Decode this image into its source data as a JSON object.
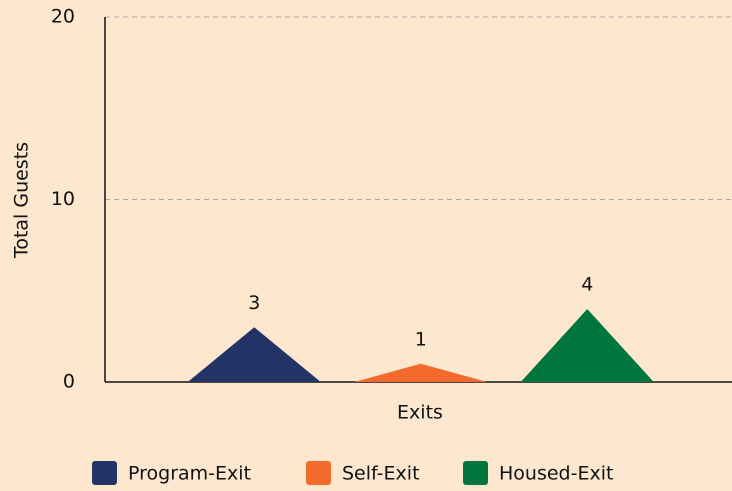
{
  "chart_data": {
    "type": "bar",
    "xlabel": "Exits",
    "ylabel": "Total Guests",
    "series": [
      {
        "name": "Program-Exit",
        "color": "#243366",
        "values": [
          3
        ]
      },
      {
        "name": "Self-Exit",
        "color": "#f26a2c",
        "values": [
          1
        ]
      },
      {
        "name": "Housed-Exit",
        "color": "#00763e",
        "values": [
          4
        ]
      }
    ],
    "ylim": [
      0,
      20
    ],
    "yticks": [
      0,
      10,
      20
    ],
    "grid": true,
    "legend": "bottom"
  }
}
